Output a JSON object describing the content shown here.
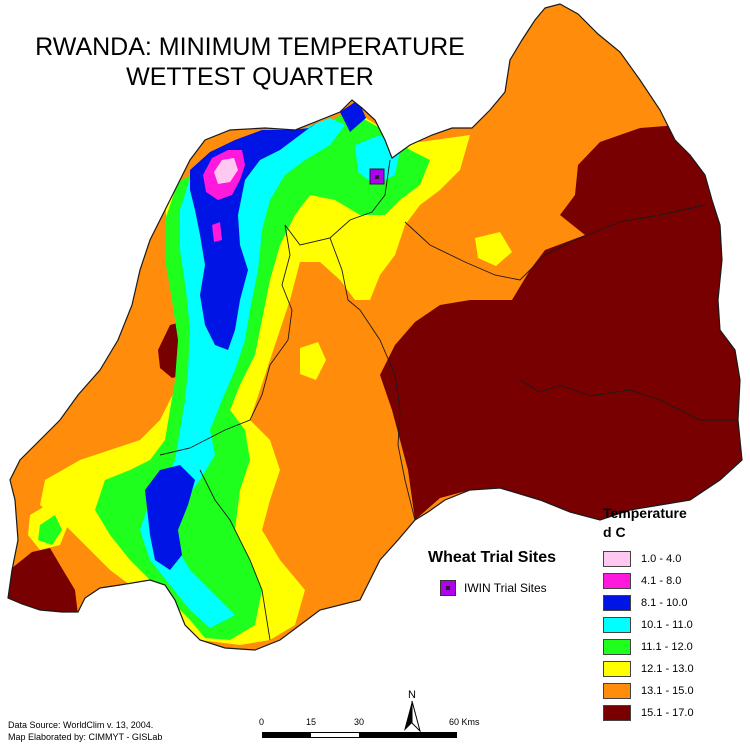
{
  "title": {
    "line1": "RWANDA:  MINIMUM TEMPERATURE",
    "line2": "WETTEST QUARTER"
  },
  "trial_sites": {
    "heading": "Wheat Trial Sites",
    "label": "IWIN Trial Sites",
    "color": "#b000f0"
  },
  "legend": {
    "title": "Temperature",
    "unit": "d C",
    "classes": [
      {
        "range": "1.0 - 4.0",
        "color": "#ffc8f0"
      },
      {
        "range": "4.1 - 8.0",
        "color": "#ff19dc"
      },
      {
        "range": "8.1 - 10.0",
        "color": "#0014e6"
      },
      {
        "range": "10.1 - 11.0",
        "color": "#00ffff"
      },
      {
        "range": "11.1 - 12.0",
        "color": "#1eff1e"
      },
      {
        "range": "12.1 - 13.0",
        "color": "#ffff00"
      },
      {
        "range": "13.1 - 15.0",
        "color": "#ff8c0a"
      },
      {
        "range": "15.1 - 17.0",
        "color": "#780000"
      }
    ]
  },
  "credits": {
    "line1": "Data Source: WorldClim v. 13, 2004.",
    "line2": "Map Elaborated by: CIMMYT - GISLab"
  },
  "scale_bar": {
    "labels": [
      "0",
      "15",
      "30",
      "60 Kms"
    ]
  },
  "north_arrow": {
    "label": "N"
  }
}
